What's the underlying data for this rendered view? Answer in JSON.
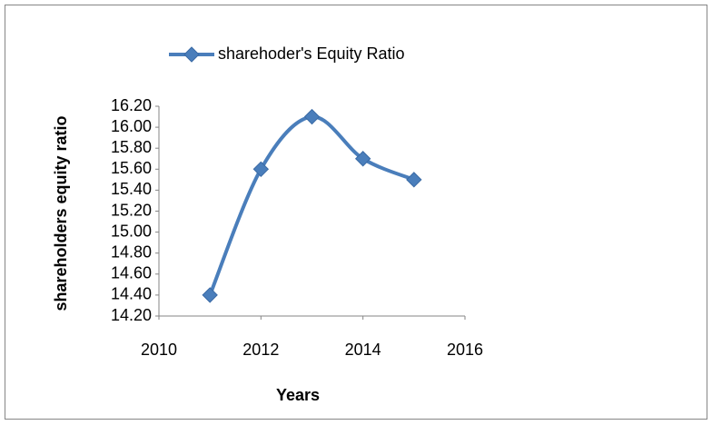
{
  "chart_data": {
    "type": "line",
    "xlabel": "Years",
    "ylabel": "shareholders equity ratio",
    "x": [
      2011,
      2012,
      2013,
      2014,
      2015
    ],
    "series": [
      {
        "name": "sharehoder's Equity Ratio",
        "color": "#4a7ebb",
        "values": [
          14.4,
          15.6,
          16.1,
          15.7,
          15.5
        ]
      }
    ],
    "xlim": [
      2010,
      2016
    ],
    "xticks": [
      2010,
      2012,
      2014,
      2016
    ],
    "ylim": [
      14.2,
      16.2
    ],
    "yticks": [
      {
        "value": 14.2,
        "label": "14.20"
      },
      {
        "value": 14.4,
        "label": "14.40"
      },
      {
        "value": 14.6,
        "label": "14.60"
      },
      {
        "value": 14.8,
        "label": "14.80"
      },
      {
        "value": 15.0,
        "label": "15.00"
      },
      {
        "value": 15.2,
        "label": "15.20"
      },
      {
        "value": 15.4,
        "label": "15.40"
      },
      {
        "value": 15.6,
        "label": "15.60"
      },
      {
        "value": 15.8,
        "label": "15.80"
      },
      {
        "value": 16.0,
        "label": "16.00"
      },
      {
        "value": 16.2,
        "label": "16.20"
      }
    ],
    "grid": false,
    "legend": "top",
    "smooth": true
  }
}
